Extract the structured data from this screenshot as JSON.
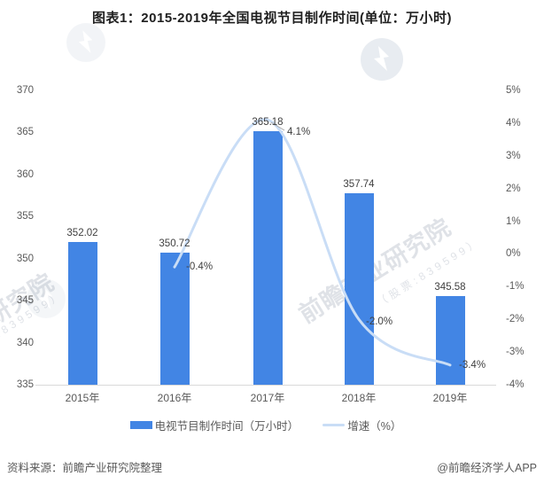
{
  "title": "图表1：2015-2019年全国电视节目制作时间(单位：万小时)",
  "chart_data": {
    "type": "bar+line",
    "categories": [
      "2015年",
      "2016年",
      "2017年",
      "2018年",
      "2019年"
    ],
    "series": [
      {
        "name": "电视节目制作时间（万小时）",
        "type": "bar",
        "values": [
          352.02,
          350.72,
          365.18,
          357.74,
          345.58
        ],
        "data_labels": [
          "352.02",
          "350.72",
          "365.18",
          "357.74",
          "345.58"
        ]
      },
      {
        "name": "增速（%）",
        "type": "line",
        "values": [
          null,
          -0.4,
          4.1,
          -2.0,
          -3.4
        ],
        "data_labels": [
          null,
          "-0.4%",
          "4.1%",
          "-2.0%",
          "-3.4%"
        ]
      }
    ],
    "left_axis": {
      "ticks": [
        "370",
        "365",
        "360",
        "355",
        "350",
        "345",
        "340",
        "335"
      ],
      "min": 335,
      "max": 370
    },
    "right_axis": {
      "ticks": [
        "5%",
        "4%",
        "3%",
        "2%",
        "1%",
        "0%",
        "-1%",
        "-2%",
        "-3%",
        "-4%"
      ],
      "min": -4,
      "max": 5
    },
    "grid": false,
    "legend_position": "bottom"
  },
  "legend": {
    "items": [
      {
        "label": "电视节目制作时间（万小时）"
      },
      {
        "label": "增速（%）"
      }
    ]
  },
  "footer": {
    "source": "资料来源：前瞻产业研究院整理",
    "credit": "@前瞻经济学人APP"
  },
  "watermark": {
    "brand": "前瞻产业研究院",
    "stock": "（股票:839599）"
  },
  "colors": {
    "bar": "#4285e4",
    "line": "#c9ddf6",
    "title": "#1f1f1f",
    "axis_text": "#595959",
    "data_label": "#404040",
    "axis_line": "#d9d9d9",
    "footer_text": "#595959"
  }
}
